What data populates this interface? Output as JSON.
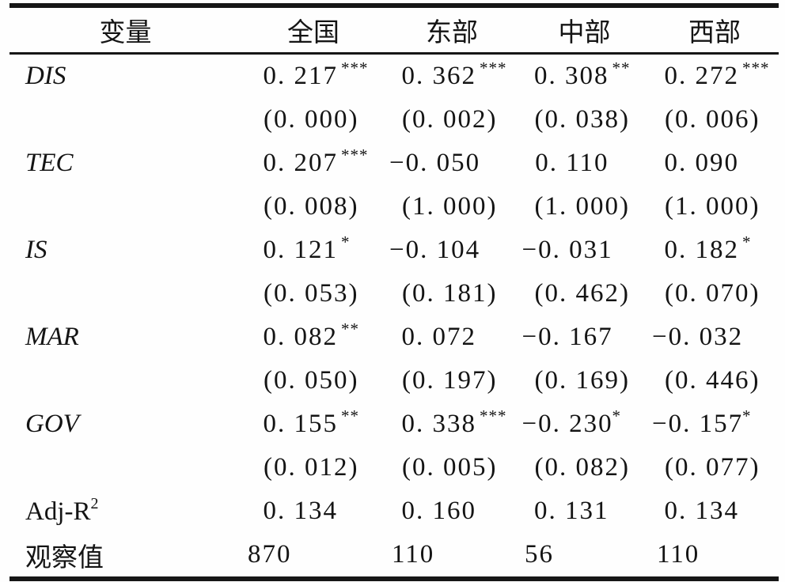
{
  "table": {
    "columns": [
      "变量",
      "全国",
      "东部",
      "中部",
      "西部"
    ],
    "rows": [
      {
        "label": "DIS",
        "cells": [
          {
            "v": "0. 217",
            "s": "***",
            "p": "(0. 000)"
          },
          {
            "v": "0. 362",
            "s": "***",
            "p": "(0. 002)"
          },
          {
            "v": "0. 308",
            "s": "**",
            "p": "(0. 038)"
          },
          {
            "v": "0. 272",
            "s": "***",
            "p": "(0. 006)"
          }
        ]
      },
      {
        "label": "TEC",
        "cells": [
          {
            "v": "0. 207",
            "s": "***",
            "p": "(0. 008)"
          },
          {
            "v": "−0. 050",
            "s": "",
            "p": "(1. 000)"
          },
          {
            "v": "0. 110",
            "s": "",
            "p": "(1. 000)"
          },
          {
            "v": "0. 090",
            "s": "",
            "p": "(1. 000)"
          }
        ]
      },
      {
        "label": "IS",
        "cells": [
          {
            "v": "0. 121",
            "s": "*",
            "p": "(0. 053)"
          },
          {
            "v": "−0. 104",
            "s": "",
            "p": "(0. 181)"
          },
          {
            "v": "−0. 031",
            "s": "",
            "p": "(0. 462)"
          },
          {
            "v": "0. 182",
            "s": "*",
            "p": "(0. 070)"
          }
        ]
      },
      {
        "label": "MAR",
        "cells": [
          {
            "v": "0. 082",
            "s": "**",
            "p": "(0. 050)"
          },
          {
            "v": "0. 072",
            "s": "",
            "p": "(0. 197)"
          },
          {
            "v": "−0. 167",
            "s": "",
            "p": "(0. 169)"
          },
          {
            "v": "−0. 032",
            "s": "",
            "p": "(0. 446)"
          }
        ]
      },
      {
        "label": "GOV",
        "cells": [
          {
            "v": "0. 155",
            "s": "**",
            "p": "(0. 012)"
          },
          {
            "v": "0. 338",
            "s": "***",
            "p": "(0. 005)"
          },
          {
            "v": "−0. 230",
            "s": "*",
            "p": "(0. 082)"
          },
          {
            "v": "−0. 157",
            "s": "*",
            "p": "(0. 077)"
          }
        ]
      }
    ],
    "adj_r2": {
      "label": "Adj-R",
      "sup": "2",
      "values": [
        "0. 134",
        "0. 160",
        "0. 131",
        "0. 134"
      ]
    },
    "obs": {
      "label": "观察值",
      "values": [
        "870",
        "110",
        "56",
        "110"
      ]
    }
  }
}
